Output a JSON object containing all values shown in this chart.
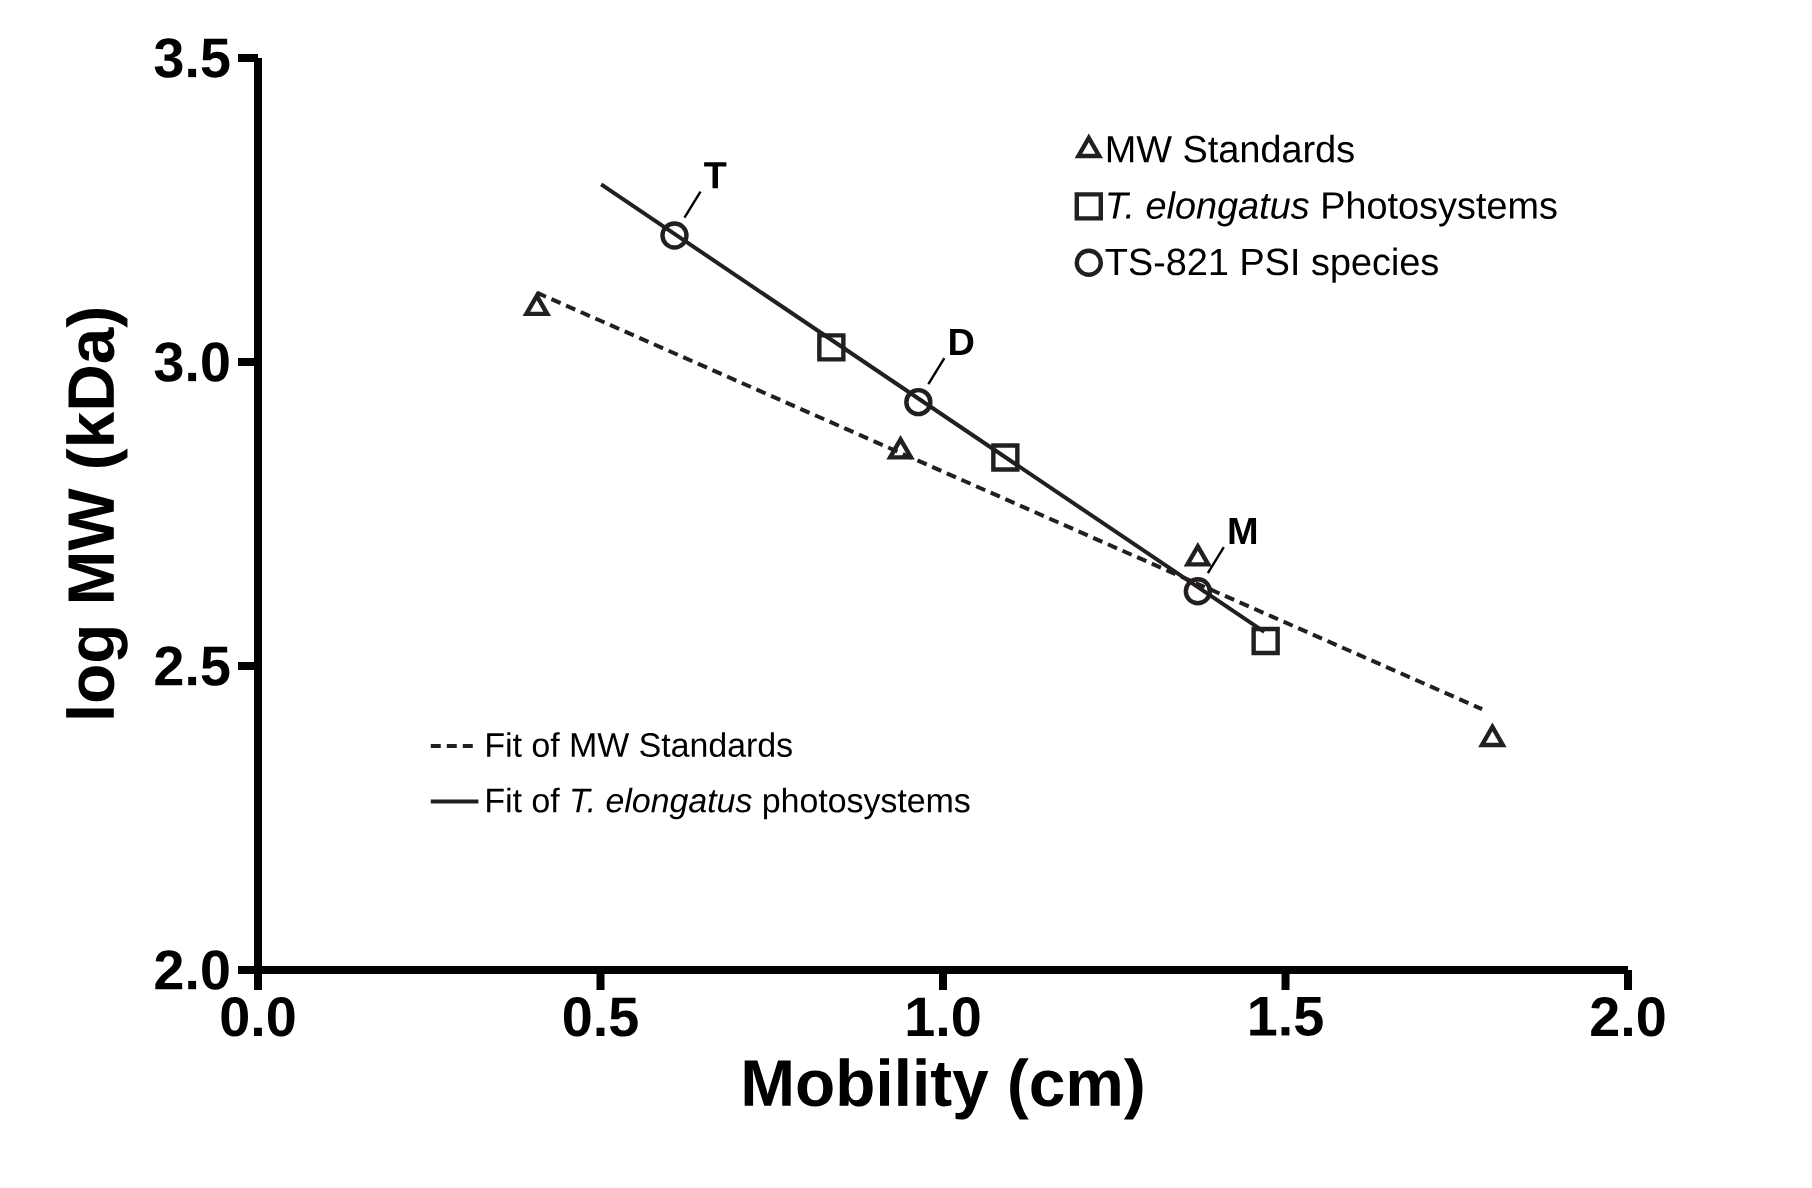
{
  "chart_data": {
    "type": "scatter",
    "xlabel": "Mobility (cm)",
    "ylabel": "log MW (kDa)",
    "xlim": [
      0,
      2
    ],
    "ylim": [
      2,
      3.5
    ],
    "xticks": [
      {
        "value": 0,
        "label": "0.0"
      },
      {
        "value": 0.5,
        "label": "0.5"
      },
      {
        "value": 1,
        "label": "1.0"
      },
      {
        "value": 1.5,
        "label": "1.5"
      },
      {
        "value": 2,
        "label": "2.0"
      }
    ],
    "yticks": [
      {
        "value": 2,
        "label": "2.0"
      },
      {
        "value": 2.5,
        "label": "2.5"
      },
      {
        "value": 3,
        "label": "3.0"
      },
      {
        "value": 3.5,
        "label": "3.5"
      }
    ],
    "legend": "top right",
    "series": [
      {
        "name": "MW Standards",
        "marker": "triangle",
        "color": "#231f20",
        "x": [
          0.407,
          0.938,
          1.372,
          1.802
        ],
        "values": [
          3.089,
          2.853,
          2.677,
          2.38
        ]
      },
      {
        "name": "*T. elongatus* Photosystems",
        "marker": "square",
        "color": "#231f20",
        "x": [
          0.837,
          1.091,
          1.471
        ],
        "values": [
          3.024,
          2.843,
          2.541
        ]
      },
      {
        "name": "TS-821 PSI species",
        "marker": "circle",
        "color": "#231f20",
        "x": [
          0.608,
          0.964,
          1.372
        ],
        "values": [
          3.208,
          2.934,
          2.623
        ]
      },
      {
        "name": "Fit of MW Standards",
        "type": "line",
        "line_style": "dashed",
        "color": "#231f20",
        "x": [
          0.407,
          1.787
        ],
        "values": [
          3.114,
          2.429
        ]
      },
      {
        "name": "Fit of *T. elongatus* photosystems",
        "type": "line",
        "line_style": "solid",
        "color": "#231f20",
        "x": [
          0.501,
          1.469
        ],
        "values": [
          3.292,
          2.556
        ]
      }
    ],
    "annotations": [
      {
        "text": "T",
        "x": 0.608,
        "y": 3.208
      },
      {
        "text": "D",
        "x": 0.964,
        "y": 2.934
      },
      {
        "text": "M",
        "x": 1.372,
        "y": 2.623
      }
    ]
  }
}
